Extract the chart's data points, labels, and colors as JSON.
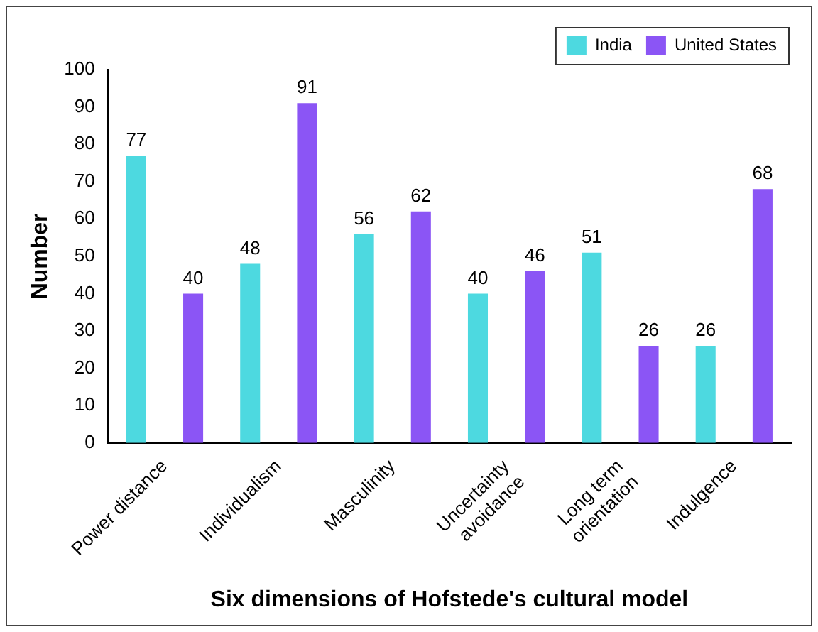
{
  "chart_data": {
    "type": "bar",
    "xlabel": "Six dimensions of Hofstede's cultural model",
    "ylabel": "Number",
    "categories": [
      "Power distance",
      "Individualism",
      "Masculinity",
      "Uncertainty\navoidance",
      "Long term\norientation",
      "Indulgence"
    ],
    "series": [
      {
        "name": "India",
        "color": "#4dd9e0",
        "values": [
          77,
          48,
          56,
          40,
          51,
          26
        ]
      },
      {
        "name": "United States",
        "color": "#8b55f5",
        "values": [
          40,
          91,
          62,
          46,
          26,
          68
        ]
      }
    ],
    "ylim": [
      0,
      100
    ],
    "yticks": [
      0,
      10,
      20,
      30,
      40,
      50,
      60,
      70,
      80,
      90,
      100
    ],
    "grid": false,
    "legend": "top right",
    "data_labels": true
  }
}
